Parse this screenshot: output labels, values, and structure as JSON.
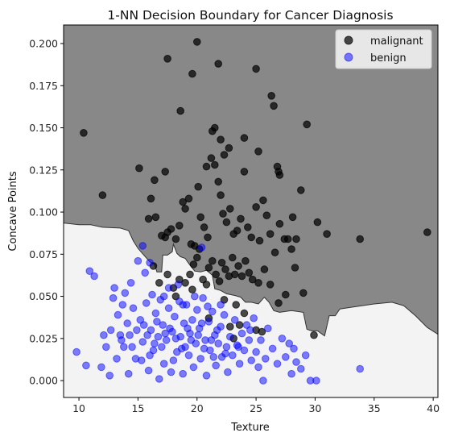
{
  "chart_data": {
    "type": "scatter",
    "title": "1-NN Decision Boundary for Cancer Diagnosis",
    "xlabel": "Texture",
    "ylabel": "Concave Points",
    "xlim": [
      8.7,
      40.4
    ],
    "ylim": [
      -0.01,
      0.211
    ],
    "xticks": [
      10,
      15,
      20,
      25,
      30,
      35,
      40
    ],
    "yticks": [
      0.0,
      0.025,
      0.05,
      0.075,
      0.1,
      0.125,
      0.15,
      0.175,
      0.2
    ],
    "ytick_labels": [
      "0.000",
      "0.025",
      "0.050",
      "0.075",
      "0.100",
      "0.125",
      "0.150",
      "0.175",
      "0.200"
    ],
    "grid": false,
    "legend_position": "top-right",
    "regions": {
      "malignant_color": "#888888",
      "benign_color": "#f3f3f3",
      "boundary_color": "#333333",
      "boundary": [
        [
          8.7,
          0.0935
        ],
        [
          10.0,
          0.0925
        ],
        [
          11.0,
          0.0925
        ],
        [
          12.0,
          0.091
        ],
        [
          13.5,
          0.0905
        ],
        [
          14.2,
          0.089
        ],
        [
          14.6,
          0.083
        ],
        [
          15.0,
          0.0785
        ],
        [
          15.5,
          0.0745
        ],
        [
          16.0,
          0.0705
        ],
        [
          16.4,
          0.069
        ],
        [
          16.6,
          0.0645
        ],
        [
          17.0,
          0.0645
        ],
        [
          17.1,
          0.0745
        ],
        [
          17.5,
          0.0745
        ],
        [
          17.9,
          0.0765
        ],
        [
          18.0,
          0.081
        ],
        [
          18.3,
          0.0755
        ],
        [
          18.6,
          0.0735
        ],
        [
          19.0,
          0.0725
        ],
        [
          19.3,
          0.0695
        ],
        [
          19.8,
          0.065
        ],
        [
          20.3,
          0.0645
        ],
        [
          20.8,
          0.0655
        ],
        [
          21.3,
          0.0625
        ],
        [
          21.5,
          0.0545
        ],
        [
          22.0,
          0.0535
        ],
        [
          22.5,
          0.0515
        ],
        [
          23.2,
          0.0505
        ],
        [
          23.7,
          0.0495
        ],
        [
          24.1,
          0.0465
        ],
        [
          24.6,
          0.0465
        ],
        [
          25.2,
          0.0455
        ],
        [
          25.7,
          0.0495
        ],
        [
          26.1,
          0.0465
        ],
        [
          26.5,
          0.0415
        ],
        [
          27.0,
          0.0405
        ],
        [
          28.0,
          0.0415
        ],
        [
          29.0,
          0.0405
        ],
        [
          29.3,
          0.0305
        ],
        [
          29.7,
          0.0295
        ],
        [
          30.2,
          0.0295
        ],
        [
          30.8,
          0.0265
        ],
        [
          31.2,
          0.0385
        ],
        [
          31.7,
          0.0385
        ],
        [
          32.1,
          0.0425
        ],
        [
          33.0,
          0.0435
        ],
        [
          35.0,
          0.0455
        ],
        [
          36.5,
          0.0465
        ],
        [
          37.5,
          0.0445
        ],
        [
          38.5,
          0.0385
        ],
        [
          39.5,
          0.0315
        ],
        [
          40.4,
          0.0275
        ]
      ]
    },
    "series": [
      {
        "name": "malignant",
        "color": "#000000",
        "points": [
          [
            10.4,
            0.147
          ],
          [
            12.0,
            0.11
          ],
          [
            15.1,
            0.126
          ],
          [
            16.1,
            0.108
          ],
          [
            16.4,
            0.119
          ],
          [
            17.3,
            0.124
          ],
          [
            17.5,
            0.191
          ],
          [
            18.6,
            0.16
          ],
          [
            19.6,
            0.182
          ],
          [
            20.0,
            0.201
          ],
          [
            20.8,
            0.127
          ],
          [
            21.3,
            0.148
          ],
          [
            21.8,
            0.188
          ],
          [
            21.5,
            0.15
          ],
          [
            22.0,
            0.143
          ],
          [
            22.3,
            0.134
          ],
          [
            22.7,
            0.138
          ],
          [
            24.0,
            0.144
          ],
          [
            25.0,
            0.185
          ],
          [
            25.2,
            0.136
          ],
          [
            26.3,
            0.169
          ],
          [
            26.5,
            0.163
          ],
          [
            26.8,
            0.127
          ],
          [
            26.9,
            0.124
          ],
          [
            27.0,
            0.122
          ],
          [
            29.3,
            0.152
          ],
          [
            15.9,
            0.096
          ],
          [
            16.5,
            0.097
          ],
          [
            17.0,
            0.086
          ],
          [
            17.3,
            0.085
          ],
          [
            17.5,
            0.088
          ],
          [
            17.8,
            0.09
          ],
          [
            18.2,
            0.084
          ],
          [
            18.5,
            0.092
          ],
          [
            18.8,
            0.106
          ],
          [
            19.0,
            0.102
          ],
          [
            19.3,
            0.108
          ],
          [
            19.5,
            0.081
          ],
          [
            19.8,
            0.08
          ],
          [
            20.1,
            0.115
          ],
          [
            20.3,
            0.097
          ],
          [
            20.6,
            0.091
          ],
          [
            20.9,
            0.085
          ],
          [
            21.2,
            0.132
          ],
          [
            21.5,
            0.128
          ],
          [
            21.8,
            0.118
          ],
          [
            22.0,
            0.11
          ],
          [
            22.2,
            0.099
          ],
          [
            22.5,
            0.094
          ],
          [
            22.8,
            0.102
          ],
          [
            23.1,
            0.087
          ],
          [
            23.4,
            0.089
          ],
          [
            23.7,
            0.096
          ],
          [
            24.0,
            0.124
          ],
          [
            24.3,
            0.091
          ],
          [
            24.6,
            0.085
          ],
          [
            25.0,
            0.103
          ],
          [
            25.3,
            0.083
          ],
          [
            25.6,
            0.107
          ],
          [
            25.9,
            0.098
          ],
          [
            26.2,
            0.087
          ],
          [
            26.6,
            0.076
          ],
          [
            27.0,
            0.093
          ],
          [
            27.4,
            0.084
          ],
          [
            27.7,
            0.084
          ],
          [
            28.1,
            0.097
          ],
          [
            28.4,
            0.084
          ],
          [
            28.8,
            0.113
          ],
          [
            30.2,
            0.094
          ],
          [
            31.0,
            0.087
          ],
          [
            33.8,
            0.084
          ],
          [
            39.5,
            0.088
          ],
          [
            16.3,
            0.068
          ],
          [
            16.8,
            0.058
          ],
          [
            17.5,
            0.063
          ],
          [
            18.0,
            0.055
          ],
          [
            18.5,
            0.06
          ],
          [
            19.0,
            0.058
          ],
          [
            19.4,
            0.063
          ],
          [
            19.7,
            0.069
          ],
          [
            20.0,
            0.073
          ],
          [
            20.2,
            0.078
          ],
          [
            20.5,
            0.06
          ],
          [
            20.8,
            0.057
          ],
          [
            21.0,
            0.067
          ],
          [
            21.3,
            0.071
          ],
          [
            21.6,
            0.063
          ],
          [
            21.9,
            0.059
          ],
          [
            22.1,
            0.07
          ],
          [
            22.4,
            0.066
          ],
          [
            22.7,
            0.062
          ],
          [
            23.0,
            0.073
          ],
          [
            23.2,
            0.063
          ],
          [
            23.5,
            0.068
          ],
          [
            23.8,
            0.062
          ],
          [
            24.1,
            0.071
          ],
          [
            24.4,
            0.064
          ],
          [
            24.7,
            0.06
          ],
          [
            25.2,
            0.058
          ],
          [
            25.7,
            0.066
          ],
          [
            26.2,
            0.057
          ],
          [
            26.9,
            0.046
          ],
          [
            27.5,
            0.051
          ],
          [
            28.0,
            0.078
          ],
          [
            28.3,
            0.067
          ],
          [
            29.0,
            0.052
          ],
          [
            29.9,
            0.027
          ],
          [
            22.8,
            0.032
          ],
          [
            23.1,
            0.025
          ],
          [
            23.6,
            0.033
          ],
          [
            24.0,
            0.04
          ],
          [
            25.5,
            0.029
          ],
          [
            25.0,
            0.03
          ],
          [
            19.6,
            0.054
          ],
          [
            21.0,
            0.037
          ],
          [
            22.3,
            0.048
          ],
          [
            23.3,
            0.045
          ],
          [
            18.2,
            0.05
          ]
        ]
      },
      {
        "name": "benign",
        "color": "#0000ff",
        "points": [
          [
            9.8,
            0.017
          ],
          [
            10.6,
            0.009
          ],
          [
            10.9,
            0.065
          ],
          [
            11.3,
            0.062
          ],
          [
            11.9,
            0.008
          ],
          [
            12.3,
            0.02
          ],
          [
            12.6,
            0.003
          ],
          [
            12.9,
            0.049
          ],
          [
            13.0,
            0.055
          ],
          [
            13.3,
            0.039
          ],
          [
            13.5,
            0.027
          ],
          [
            13.7,
            0.045
          ],
          [
            13.9,
            0.052
          ],
          [
            14.1,
            0.034
          ],
          [
            14.2,
            0.004
          ],
          [
            14.4,
            0.058
          ],
          [
            14.6,
            0.043
          ],
          [
            14.8,
            0.013
          ],
          [
            15.0,
            0.071
          ],
          [
            15.2,
            0.036
          ],
          [
            15.4,
            0.023
          ],
          [
            15.6,
            0.064
          ],
          [
            15.7,
            0.046
          ],
          [
            15.9,
            0.006
          ],
          [
            16.1,
            0.03
          ],
          [
            16.2,
            0.051
          ],
          [
            16.3,
            0.018
          ],
          [
            16.5,
            0.04
          ],
          [
            16.7,
            0.026
          ],
          [
            16.8,
            0.001
          ],
          [
            16.9,
            0.048
          ],
          [
            17.1,
            0.033
          ],
          [
            17.2,
            0.01
          ],
          [
            17.4,
            0.024
          ],
          [
            17.6,
            0.043
          ],
          [
            17.8,
            0.005
          ],
          [
            17.9,
            0.029
          ],
          [
            18.1,
            0.038
          ],
          [
            18.3,
            0.017
          ],
          [
            18.4,
            0.057
          ],
          [
            18.6,
            0.026
          ],
          [
            18.8,
            0.004
          ],
          [
            18.9,
            0.034
          ],
          [
            19.1,
            0.045
          ],
          [
            19.3,
            0.015
          ],
          [
            19.4,
            0.028
          ],
          [
            19.6,
            0.036
          ],
          [
            19.7,
            0.008
          ],
          [
            19.9,
            0.022
          ],
          [
            20.0,
            0.042
          ],
          [
            20.2,
            0.031
          ],
          [
            20.3,
            0.013
          ],
          [
            20.5,
            0.049
          ],
          [
            20.7,
            0.024
          ],
          [
            20.8,
            0.003
          ],
          [
            21.0,
            0.035
          ],
          [
            21.1,
            0.018
          ],
          [
            21.3,
            0.041
          ],
          [
            21.5,
            0.027
          ],
          [
            21.6,
            0.009
          ],
          [
            21.8,
            0.022
          ],
          [
            22.0,
            0.032
          ],
          [
            22.1,
            0.014
          ],
          [
            22.3,
            0.039
          ],
          [
            22.5,
            0.02
          ],
          [
            22.6,
            0.005
          ],
          [
            22.8,
            0.026
          ],
          [
            23.0,
            0.015
          ],
          [
            23.2,
            0.036
          ],
          [
            23.4,
            0.021
          ],
          [
            23.6,
            0.01
          ],
          [
            23.8,
            0.028
          ],
          [
            24.0,
            0.018
          ],
          [
            24.2,
            0.033
          ],
          [
            24.4,
            0.024
          ],
          [
            24.6,
            0.012
          ],
          [
            24.8,
            0.037
          ],
          [
            25.0,
            0.017
          ],
          [
            25.2,
            0.008
          ],
          [
            25.4,
            0.024
          ],
          [
            25.6,
            0.0
          ],
          [
            25.8,
            0.013
          ],
          [
            26.0,
            0.031
          ],
          [
            26.4,
            0.019
          ],
          [
            26.8,
            0.01
          ],
          [
            27.2,
            0.025
          ],
          [
            27.5,
            0.014
          ],
          [
            27.8,
            0.022
          ],
          [
            28.0,
            0.004
          ],
          [
            28.2,
            0.019
          ],
          [
            28.4,
            0.011
          ],
          [
            28.8,
            0.007
          ],
          [
            29.2,
            0.015
          ],
          [
            29.6,
            0.0
          ],
          [
            30.1,
            0.0
          ],
          [
            33.8,
            0.007
          ],
          [
            14.5,
            0.02
          ],
          [
            15.3,
            0.012
          ],
          [
            16.0,
            0.015
          ],
          [
            17.0,
            0.02
          ],
          [
            18.0,
            0.012
          ],
          [
            19.0,
            0.02
          ],
          [
            20.6,
            0.019
          ],
          [
            21.4,
            0.014
          ],
          [
            13.2,
            0.013
          ],
          [
            13.8,
            0.02
          ],
          [
            14.9,
            0.03
          ],
          [
            15.8,
            0.027
          ],
          [
            16.6,
            0.035
          ],
          [
            17.3,
            0.028
          ],
          [
            18.2,
            0.025
          ],
          [
            19.5,
            0.024
          ],
          [
            20.1,
            0.027
          ],
          [
            21.2,
            0.024
          ],
          [
            22.4,
            0.016
          ],
          [
            23.5,
            0.02
          ],
          [
            12.1,
            0.027
          ],
          [
            12.7,
            0.03
          ],
          [
            13.6,
            0.024
          ],
          [
            14.3,
            0.027
          ],
          [
            15.5,
            0.033
          ],
          [
            16.4,
            0.022
          ],
          [
            17.7,
            0.031
          ],
          [
            18.7,
            0.019
          ],
          [
            19.2,
            0.031
          ],
          [
            20.4,
            0.034
          ],
          [
            21.7,
            0.03
          ],
          [
            24.5,
            0.03
          ],
          [
            15.4,
            0.08
          ],
          [
            16.0,
            0.07
          ],
          [
            20.4,
            0.079
          ],
          [
            18.8,
            0.045
          ],
          [
            19.8,
            0.05
          ],
          [
            17.2,
            0.05
          ],
          [
            17.6,
            0.055
          ],
          [
            18.5,
            0.047
          ],
          [
            20.9,
            0.044
          ],
          [
            22.0,
            0.045
          ]
        ]
      }
    ]
  }
}
